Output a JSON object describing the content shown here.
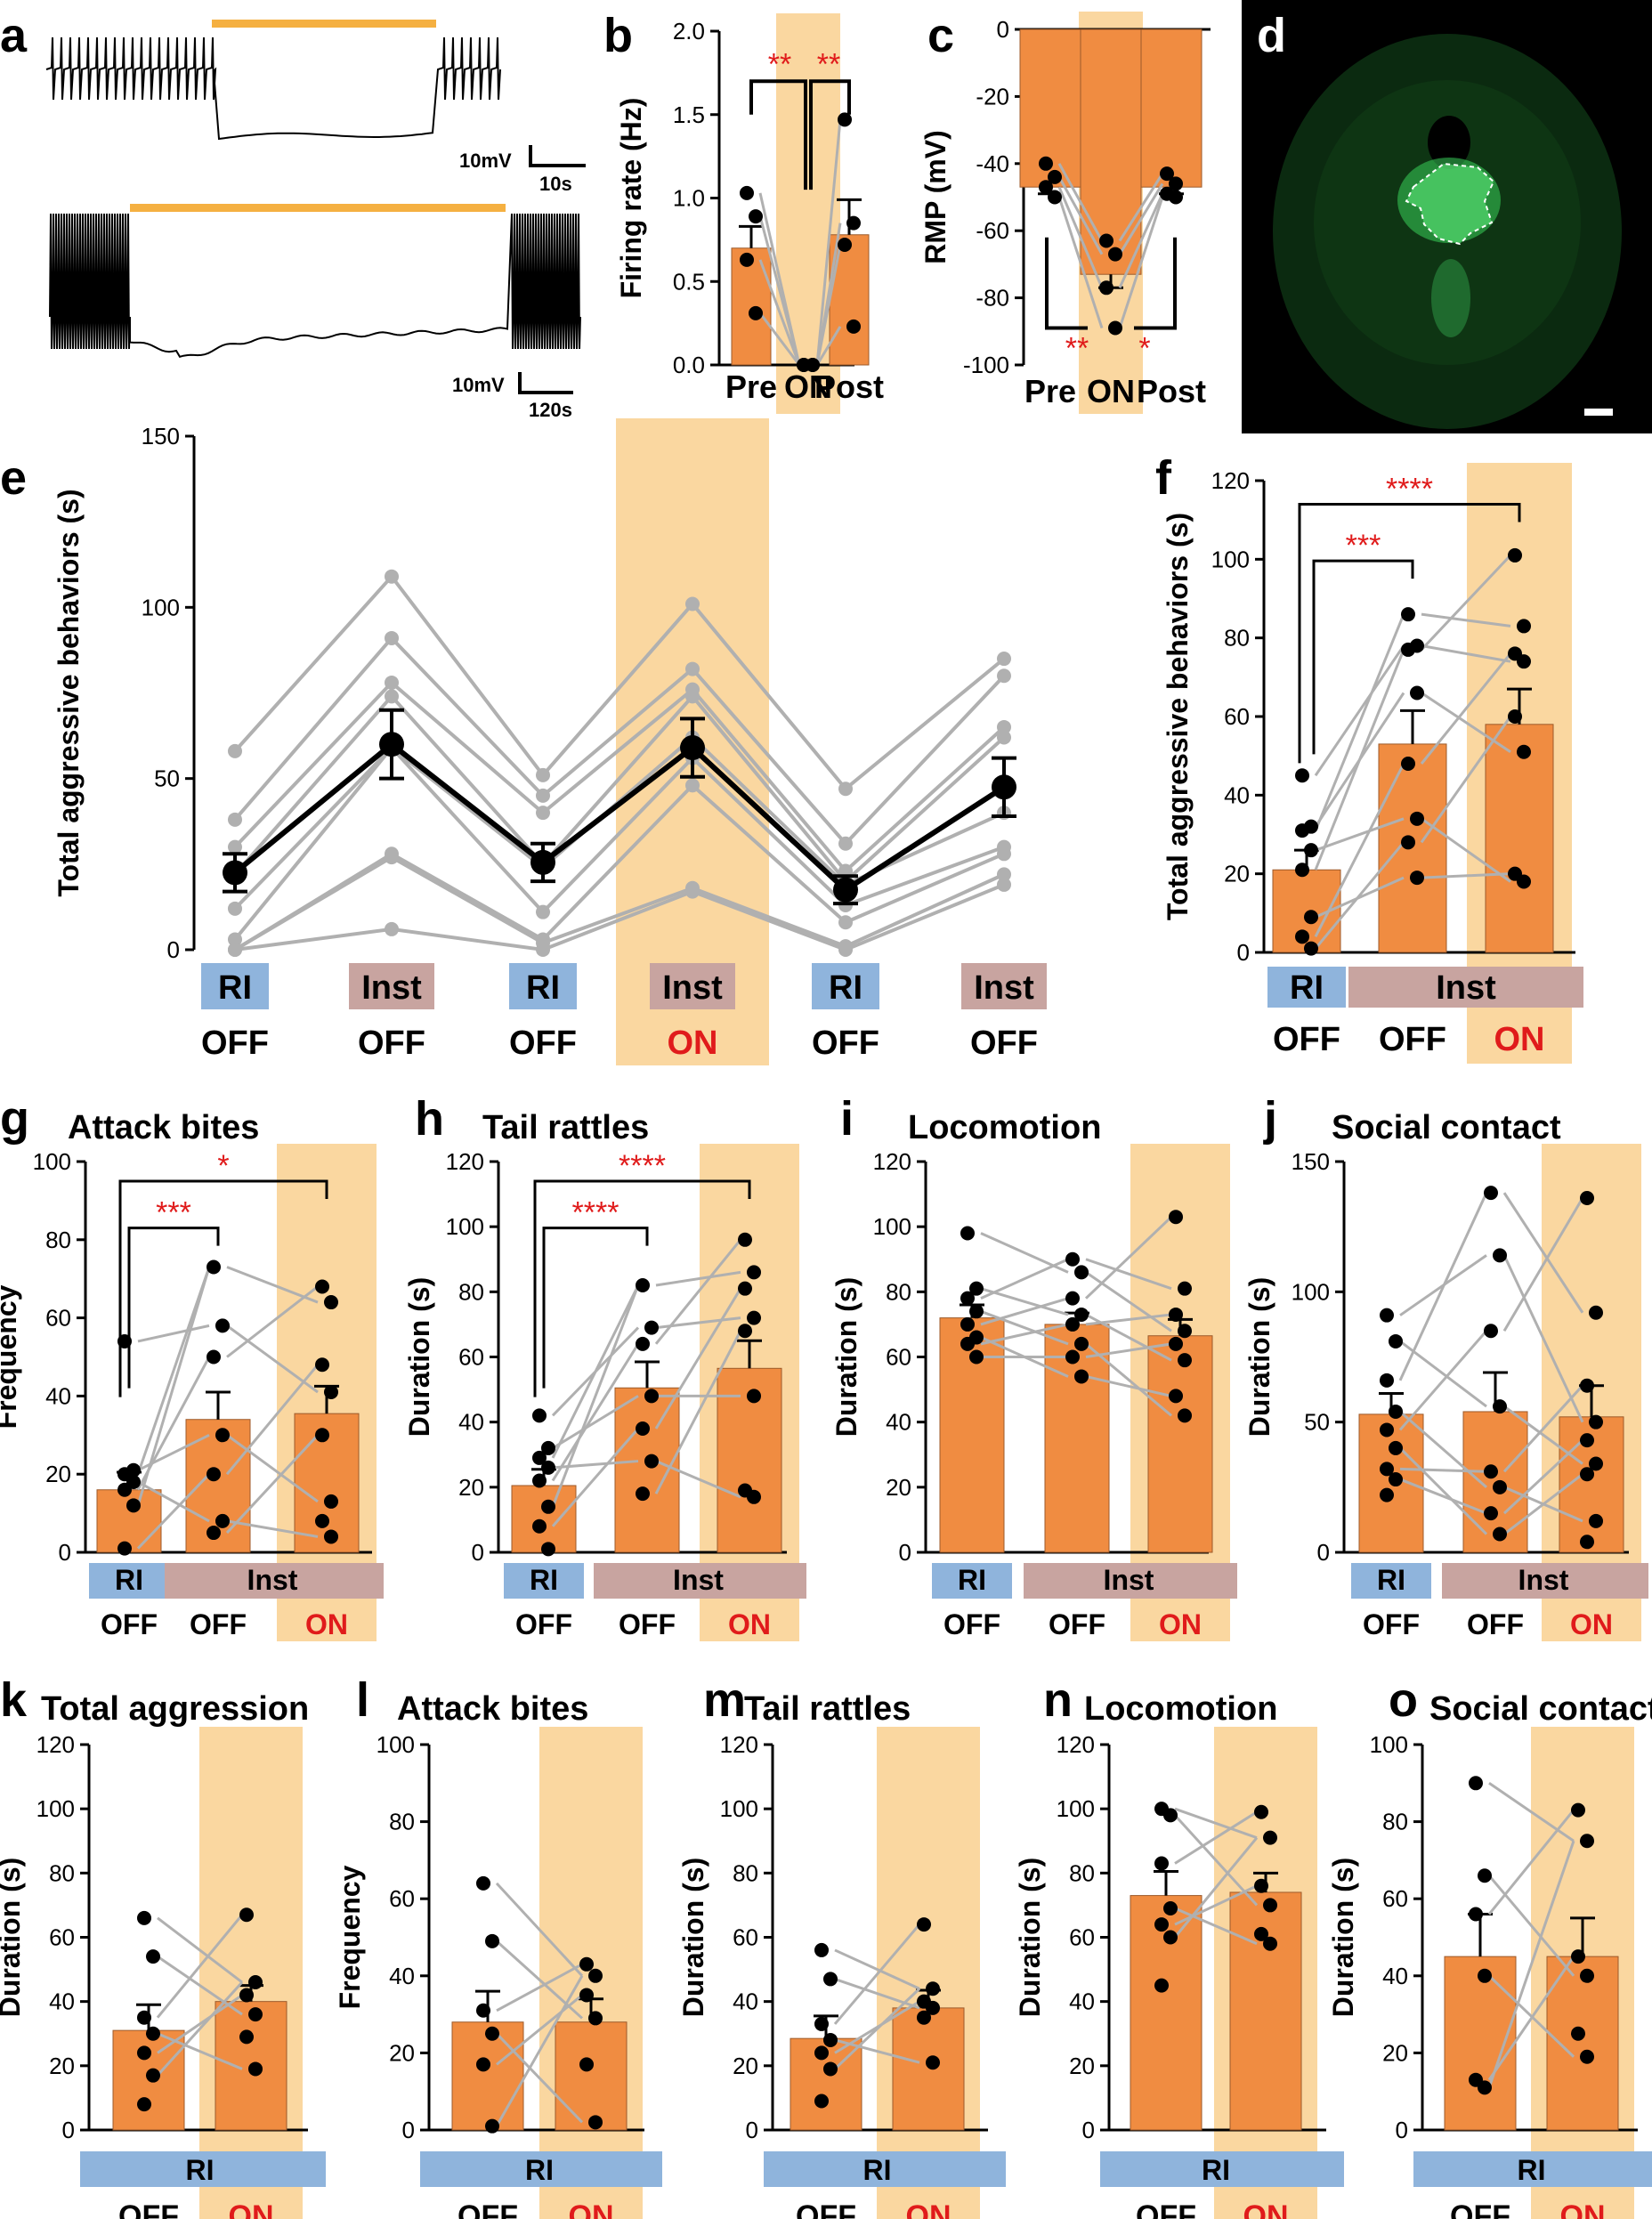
{
  "colors": {
    "bar": "#f08c41",
    "bar_stroke": "#9c5a2a",
    "shade": "#fad7a0",
    "ri": "#8fb4dc",
    "inst": "#c8a4a0",
    "sig": "#e01b1b",
    "ind": "#b0b0b0",
    "opto": "#f5b041",
    "black": "#000000"
  },
  "panel_letters": [
    "a",
    "b",
    "c",
    "d",
    "e",
    "f",
    "g",
    "h",
    "i",
    "j",
    "k",
    "l",
    "m",
    "n",
    "o"
  ],
  "panel_a": {
    "scale1": {
      "v": "10mV",
      "t": "10s"
    },
    "scale2": {
      "v": "10mV",
      "t": "120s"
    }
  },
  "chart_data": [
    {
      "id": "b",
      "type": "bar",
      "title": "",
      "ylabel": "Firing rate (Hz)",
      "ylim": [
        0,
        2.0
      ],
      "yticks": [
        "0.0",
        "0.5",
        "1.0",
        "1.5",
        "2.0"
      ],
      "categories": [
        "Pre",
        "ON",
        "Post"
      ],
      "values": [
        0.7,
        0.0,
        0.78
      ],
      "errors": [
        0.13,
        0,
        0.21
      ],
      "individual": [
        [
          1.03,
          0.89,
          0.63,
          0.31
        ],
        [
          0,
          0,
          0,
          0
        ],
        [
          1.47,
          0.85,
          0.72,
          0.23
        ]
      ],
      "sig_labels": [
        "**",
        "**"
      ],
      "shaded": "ON"
    },
    {
      "id": "c",
      "type": "bar",
      "title": "",
      "ylabel": "RMP (mV)",
      "ylim": [
        -100,
        0
      ],
      "yticks": [
        "0",
        "-20",
        "-40",
        "-60",
        "-80",
        "-100"
      ],
      "categories": [
        "Pre",
        "ON",
        "Post"
      ],
      "values": [
        -47,
        -73,
        -47
      ],
      "errors": [
        2,
        4,
        2
      ],
      "individual": [
        [
          -40,
          -44,
          -47,
          -50
        ],
        [
          -63,
          -67,
          -77,
          -89
        ],
        [
          -43,
          -46,
          -49,
          -50
        ]
      ],
      "sig_labels": [
        "**",
        "*"
      ],
      "shaded": "ON"
    },
    {
      "id": "e",
      "type": "line",
      "title": "",
      "ylabel": "Total aggressive behaviors (s)",
      "ylim": [
        0,
        150
      ],
      "yticks": [
        "0",
        "50",
        "100",
        "150"
      ],
      "categories": [
        "RI",
        "Inst",
        "RI",
        "Inst",
        "RI",
        "Inst"
      ],
      "states": [
        "OFF",
        "OFF",
        "OFF",
        "ON",
        "OFF",
        "OFF"
      ],
      "mean": [
        22.5,
        60,
        25.5,
        59,
        17.5,
        47.5
      ],
      "sem": [
        5.5,
        10,
        5.5,
        8.5,
        4,
        8.5
      ],
      "shaded_index": 3,
      "individual": [
        [
          58,
          38,
          30,
          22,
          12,
          3,
          0,
          0,
          0
        ],
        [
          109,
          91,
          78,
          74,
          59,
          59,
          28,
          27,
          6
        ],
        [
          51,
          45,
          40,
          25,
          24,
          11,
          3,
          2,
          0
        ],
        [
          101,
          82,
          76,
          74,
          62,
          56,
          48,
          18,
          17
        ],
        [
          47,
          31,
          23,
          20,
          19,
          13,
          8,
          1,
          0
        ],
        [
          85,
          80,
          65,
          62,
          40,
          30,
          28,
          22,
          19
        ]
      ]
    },
    {
      "id": "f",
      "type": "bar",
      "title": "",
      "ylabel": "Total aggressive behaviors (s)",
      "ylim": [
        0,
        120
      ],
      "yticks": [
        "0",
        "20",
        "40",
        "60",
        "80",
        "100",
        "120"
      ],
      "categories": [
        "RI",
        "Inst",
        "Inst"
      ],
      "states": [
        "OFF",
        "OFF",
        "ON"
      ],
      "values": [
        21,
        53,
        58
      ],
      "errors": [
        5,
        8.5,
        9
      ],
      "individual": [
        [
          45,
          32,
          31,
          26,
          21,
          9,
          4,
          1
        ],
        [
          86,
          78,
          77,
          66,
          48,
          34,
          28,
          19
        ],
        [
          101,
          83,
          76,
          74,
          60,
          51,
          20,
          18
        ]
      ],
      "sig_labels": [
        "***",
        "****"
      ],
      "shaded_index": 2
    },
    {
      "id": "g",
      "type": "bar",
      "title": "Attack bites",
      "ylabel": "Frequency",
      "ylim": [
        0,
        100
      ],
      "yticks": [
        "0",
        "20",
        "40",
        "60",
        "80",
        "100"
      ],
      "categories": [
        "RI",
        "Inst",
        "Inst"
      ],
      "states": [
        "OFF",
        "OFF",
        "ON"
      ],
      "values": [
        16,
        34,
        35.5
      ],
      "errors": [
        4.5,
        7,
        7
      ],
      "individual": [
        [
          54,
          21,
          20,
          18,
          16,
          12,
          1
        ],
        [
          73,
          58,
          50,
          30,
          20,
          8,
          5
        ],
        [
          68,
          64,
          48,
          41,
          30,
          13,
          8,
          4
        ]
      ],
      "sig_labels": [
        "***",
        "*"
      ],
      "shaded_index": 2
    },
    {
      "id": "h",
      "type": "bar",
      "title": "Tail rattles",
      "ylabel": "Duration (s)",
      "ylim": [
        0,
        120
      ],
      "yticks": [
        "0",
        "20",
        "40",
        "60",
        "80",
        "100",
        "120"
      ],
      "categories": [
        "RI",
        "Inst",
        "Inst"
      ],
      "states": [
        "OFF",
        "OFF",
        "ON"
      ],
      "values": [
        20.5,
        50.5,
        56.5
      ],
      "errors": [
        5,
        8,
        8.5
      ],
      "individual": [
        [
          42,
          32,
          29,
          26,
          22,
          14,
          8,
          1
        ],
        [
          82,
          69,
          64,
          48,
          38,
          28,
          18
        ],
        [
          96,
          86,
          81,
          72,
          68,
          48,
          19,
          17
        ]
      ],
      "sig_labels": [
        "****",
        "****"
      ],
      "shaded_index": 2
    },
    {
      "id": "i",
      "type": "bar",
      "title": "Locomotion",
      "ylabel": "Duration (s)",
      "ylim": [
        0,
        120
      ],
      "yticks": [
        "0",
        "20",
        "40",
        "60",
        "80",
        "100",
        "120"
      ],
      "categories": [
        "RI",
        "Inst",
        "Inst"
      ],
      "states": [
        "OFF",
        "OFF",
        "ON"
      ],
      "values": [
        72,
        70,
        66.5
      ],
      "errors": [
        4,
        3.5,
        5
      ],
      "individual": [
        [
          98,
          81,
          78,
          74,
          70,
          66,
          64,
          60
        ],
        [
          90,
          86,
          78,
          73,
          70,
          64,
          60,
          54
        ],
        [
          103,
          81,
          73,
          68,
          64,
          59,
          48,
          42
        ]
      ],
      "sig_labels": [],
      "shaded_index": 2
    },
    {
      "id": "j",
      "type": "bar",
      "title": "Social contact",
      "ylabel": "Duration (s)",
      "ylim": [
        0,
        150
      ],
      "yticks": [
        "0",
        "50",
        "100",
        "150"
      ],
      "categories": [
        "RI",
        "Inst",
        "Inst"
      ],
      "states": [
        "OFF",
        "OFF",
        "ON"
      ],
      "values": [
        53,
        54,
        52
      ],
      "errors": [
        8,
        15,
        12
      ],
      "individual": [
        [
          91,
          81,
          66,
          54,
          47,
          40,
          32,
          28,
          22
        ],
        [
          138,
          114,
          85,
          56,
          31,
          25,
          15,
          7
        ],
        [
          136,
          92,
          64,
          50,
          43,
          34,
          30,
          12,
          4
        ]
      ],
      "sig_labels": [],
      "shaded_index": 2
    },
    {
      "id": "k",
      "type": "bar",
      "title": "Total aggression",
      "ylabel": "Duration (s)",
      "ylim": [
        0,
        120
      ],
      "yticks": [
        "0",
        "20",
        "40",
        "60",
        "80",
        "100",
        "120"
      ],
      "categories": [
        "OFF",
        "ON"
      ],
      "group": "RI",
      "values": [
        31,
        40
      ],
      "errors": [
        8,
        5
      ],
      "individual": [
        [
          66,
          54,
          35,
          30,
          24,
          17,
          8
        ],
        [
          67,
          46,
          42,
          36,
          29,
          19
        ]
      ],
      "shaded_index": 1
    },
    {
      "id": "l",
      "type": "bar",
      "title": "Attack bites",
      "ylabel": "Frequency",
      "ylim": [
        0,
        100
      ],
      "yticks": [
        "0",
        "20",
        "40",
        "60",
        "80",
        "100"
      ],
      "categories": [
        "OFF",
        "ON"
      ],
      "group": "RI",
      "values": [
        28,
        28
      ],
      "errors": [
        8,
        6
      ],
      "individual": [
        [
          64,
          49,
          31,
          25,
          17,
          1
        ],
        [
          43,
          40,
          35,
          29,
          17,
          2
        ]
      ],
      "shaded_index": 1
    },
    {
      "id": "m",
      "type": "bar",
      "title": "Tail rattles",
      "ylabel": "Duration (s)",
      "ylim": [
        0,
        120
      ],
      "yticks": [
        "0",
        "20",
        "40",
        "60",
        "80",
        "100",
        "120"
      ],
      "categories": [
        "OFF",
        "ON"
      ],
      "group": "RI",
      "values": [
        28.5,
        38
      ],
      "errors": [
        7,
        5.5
      ],
      "individual": [
        [
          56,
          47,
          33,
          28,
          24,
          19,
          9
        ],
        [
          64,
          44,
          40,
          38,
          35,
          21
        ]
      ],
      "shaded_index": 1
    },
    {
      "id": "n",
      "type": "bar",
      "title": "Locomotion",
      "ylabel": "Duration (s)",
      "ylim": [
        0,
        120
      ],
      "yticks": [
        "0",
        "20",
        "40",
        "60",
        "80",
        "100",
        "120"
      ],
      "categories": [
        "OFF",
        "ON"
      ],
      "group": "RI",
      "values": [
        73,
        74
      ],
      "errors": [
        7.5,
        6
      ],
      "individual": [
        [
          100,
          98,
          83,
          69,
          64,
          60,
          45
        ],
        [
          99,
          91,
          76,
          70,
          61,
          58
        ]
      ],
      "shaded_index": 1
    },
    {
      "id": "o",
      "type": "bar",
      "title": "Social contact",
      "ylabel": "Duration (s)",
      "ylim": [
        0,
        100
      ],
      "yticks": [
        "0",
        "20",
        "40",
        "60",
        "80",
        "100"
      ],
      "categories": [
        "OFF",
        "ON"
      ],
      "group": "RI",
      "values": [
        45,
        45
      ],
      "errors": [
        11,
        10
      ],
      "individual": [
        [
          90,
          66,
          56,
          40,
          13,
          11
        ],
        [
          83,
          75,
          45,
          40,
          25,
          19
        ]
      ],
      "shaded_index": 1
    }
  ]
}
